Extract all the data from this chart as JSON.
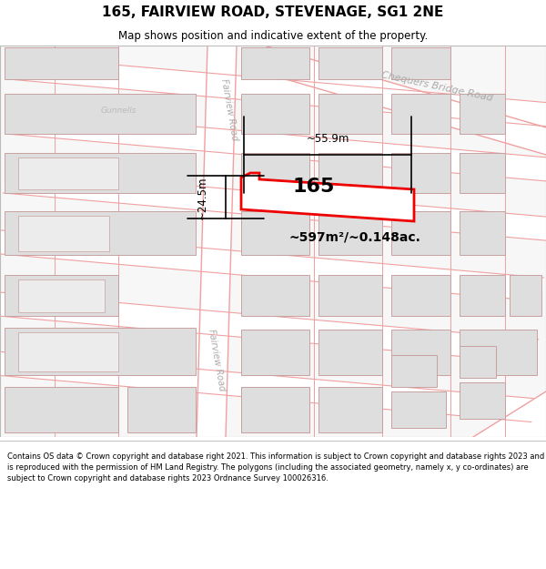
{
  "title": "165, FAIRVIEW ROAD, STEVENAGE, SG1 2NE",
  "subtitle": "Map shows position and indicative extent of the property.",
  "footer": "Contains OS data © Crown copyright and database right 2021. This information is subject to Crown copyright and database rights 2023 and is reproduced with the permission of HM Land Registry. The polygons (including the associated geometry, namely x, y co-ordinates) are subject to Crown copyright and database rights 2023 Ordnance Survey 100026316.",
  "map_bg": "#f7f7f7",
  "road_fill": "#ffffff",
  "road_stroke": "#f0a0a0",
  "block_fill": "#dedede",
  "block_stroke": "#c8a0a0",
  "highlight_fill": "#ffffff",
  "highlight_stroke": "#ee0000",
  "highlight_lw": 2.0,
  "label_165": "165",
  "area_label": "~597m²/~0.148ac.",
  "width_label": "~55.9m",
  "height_label": "~24.5m",
  "road_label_fairview": "Fairview Road",
  "road_label_chequers": "Chequers Bridge Road",
  "road_label_gunnells": "Gunnells"
}
